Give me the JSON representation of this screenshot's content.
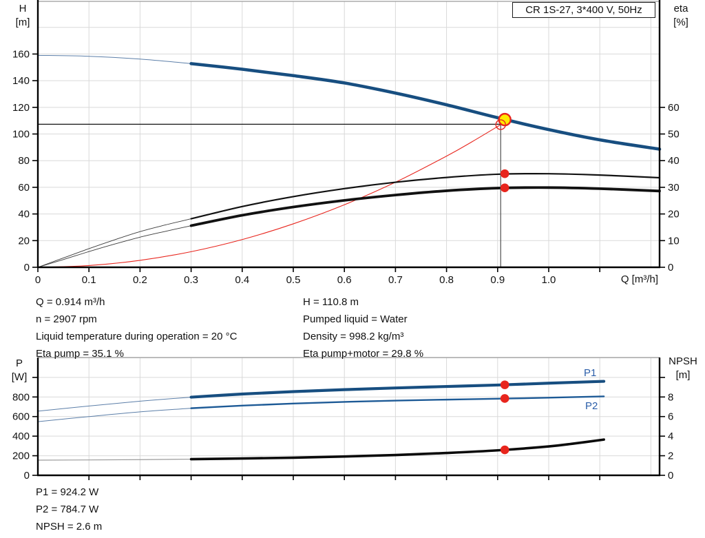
{
  "title_box": {
    "label": "CR 1S-27, 3*400 V, 50Hz"
  },
  "axis_titles": {
    "h": "H\n[m]",
    "eta": "eta\n[%]",
    "q": "Q [m³/h]",
    "p": "P\n[W]",
    "npsh": "NPSH\n[m]"
  },
  "curve_labels": {
    "p1": "P1",
    "p2": "P2"
  },
  "info": {
    "left": [
      "Q = 0.914 m³/h",
      "n = 2907 rpm",
      "Liquid temperature during operation = 20 °C",
      "Eta pump = 35.1 %"
    ],
    "right": [
      "H = 110.8 m",
      "Pumped liquid = Water",
      "Density = 998.2 kg/m³",
      "Eta pump+motor = 29.8 %"
    ],
    "bottom": [
      "P1 = 924.2 W",
      "P2 = 784.7 W",
      "NPSH = 2.6 m"
    ]
  },
  "colors": {
    "curve_blue": "#174e80",
    "p2_blue": "#1d5a96",
    "label_blue": "#2a5da8",
    "red": "#e8251d",
    "yellow": "#ffe800",
    "black": "#0d0d0d",
    "grid": "#d9d9d9",
    "border_gray": "#9a9a9a",
    "text": "#111111"
  },
  "chart_data": [
    {
      "type": "line",
      "name": "qh-eta-chart",
      "title": "CR 1S-27, 3*400 V, 50Hz",
      "xlabel": "Q [m³/h]",
      "ylabel_left": "H [m]",
      "ylabel_right": "eta [%]",
      "x_range": [
        0,
        1.217
      ],
      "y_left_range": [
        0,
        199.5
      ],
      "y_right_range": [
        0,
        99.75
      ],
      "grid": {
        "x_step": 0.1,
        "left_step": 20
      },
      "x_ticks": {
        "values": [
          0,
          0.1,
          0.2,
          0.3,
          0.4,
          0.5,
          0.6,
          0.7,
          0.8,
          0.9,
          1.0,
          1.1
        ],
        "labels": [
          "0",
          "0.1",
          "0.2",
          "0.3",
          "0.4",
          "0.5",
          "0.6",
          "0.7",
          "0.8",
          "0.9",
          "1.0",
          ""
        ]
      },
      "left_ticks": {
        "values": [
          0,
          20,
          40,
          60,
          80,
          100,
          120,
          140,
          160
        ],
        "labels": [
          "0",
          "20",
          "40",
          "60",
          "80",
          "100",
          "120",
          "140",
          "160"
        ]
      },
      "right_ticks": {
        "values": [
          0,
          10,
          20,
          30,
          40,
          50,
          60
        ],
        "labels": [
          "0",
          "10",
          "20",
          "30",
          "40",
          "50",
          "60"
        ]
      },
      "series": [
        {
          "name": "qh-curve",
          "axis": "left",
          "color": "#174e80",
          "thin_color": "#5b7ea8",
          "width": 4.6,
          "thin_width": 1,
          "thick_from": 0.3,
          "points": [
            [
              0,
              159
            ],
            [
              0.1,
              158.3
            ],
            [
              0.2,
              156.2
            ],
            [
              0.3,
              152.8
            ],
            [
              0.4,
              148.6
            ],
            [
              0.5,
              143.8
            ],
            [
              0.6,
              138.3
            ],
            [
              0.7,
              130.7
            ],
            [
              0.8,
              121.9
            ],
            [
              0.9,
              112.2
            ],
            [
              1.0,
              103.3
            ],
            [
              1.1,
              95.6
            ],
            [
              1.217,
              88.6
            ]
          ]
        },
        {
          "name": "system-curve",
          "axis": "left",
          "color": "#e8251d",
          "width": 1.1,
          "points": [
            [
              0,
              0
            ],
            [
              0.1,
              1.3
            ],
            [
              0.2,
              5.2
            ],
            [
              0.3,
              11.7
            ],
            [
              0.4,
              20.8
            ],
            [
              0.5,
              32.6
            ],
            [
              0.6,
              46.9
            ],
            [
              0.7,
              63.8
            ],
            [
              0.8,
              83.4
            ],
            [
              0.85,
              94.2
            ],
            [
              0.906,
              107
            ]
          ]
        },
        {
          "name": "eta-pump-curve",
          "axis": "right",
          "color": "#111111",
          "thin_color": "#3a3a3a",
          "width": 2.2,
          "thin_width": 0.9,
          "thick_from": 0.3,
          "points": [
            [
              0,
              0
            ],
            [
              0.05,
              3.5
            ],
            [
              0.1,
              7
            ],
            [
              0.15,
              10.3
            ],
            [
              0.2,
              13.4
            ],
            [
              0.25,
              15.9
            ],
            [
              0.3,
              18.2
            ],
            [
              0.4,
              22.8
            ],
            [
              0.5,
              26.5
            ],
            [
              0.6,
              29.5
            ],
            [
              0.7,
              31.9
            ],
            [
              0.8,
              33.7
            ],
            [
              0.9,
              34.9
            ],
            [
              1.0,
              35.1
            ],
            [
              1.1,
              34.6
            ],
            [
              1.217,
              33.6
            ]
          ]
        },
        {
          "name": "eta-pump-motor-curve",
          "axis": "right",
          "color": "#111111",
          "thin_color": "#3a3a3a",
          "width": 3.8,
          "thin_width": 0.9,
          "thick_from": 0.3,
          "points": [
            [
              0,
              0
            ],
            [
              0.05,
              2.9
            ],
            [
              0.1,
              5.9
            ],
            [
              0.15,
              8.7
            ],
            [
              0.2,
              11.3
            ],
            [
              0.25,
              13.5
            ],
            [
              0.3,
              15.6
            ],
            [
              0.4,
              19.5
            ],
            [
              0.5,
              22.6
            ],
            [
              0.6,
              25.1
            ],
            [
              0.7,
              27.1
            ],
            [
              0.8,
              28.7
            ],
            [
              0.9,
              29.7
            ],
            [
              1.0,
              29.9
            ],
            [
              1.1,
              29.5
            ],
            [
              1.217,
              28.6
            ]
          ]
        }
      ],
      "duty_lines": {
        "h_value": 107.3,
        "h_from": 0,
        "h_to": 0.906,
        "v_q": 0.906,
        "v_top": 111,
        "v_bottom": 0
      },
      "markers": [
        {
          "name": "duty-point-marker",
          "x": 0.914,
          "y": 110.8,
          "axis": "left",
          "style": "duty"
        },
        {
          "name": "system-intersection-marker",
          "x": 0.906,
          "y": 107,
          "axis": "left",
          "style": "open"
        },
        {
          "name": "eta-pump-marker",
          "x": 0.914,
          "y": 35.1,
          "axis": "right",
          "style": "dot"
        },
        {
          "name": "eta-pump-motor-marker",
          "x": 0.914,
          "y": 29.8,
          "axis": "right",
          "style": "dot"
        }
      ]
    },
    {
      "type": "line",
      "name": "power-npsh-chart",
      "xlabel": "",
      "ylabel_left": "P [W]",
      "ylabel_right": "NPSH [m]",
      "x_range": [
        0,
        1.217
      ],
      "y_left_range": [
        0,
        1203
      ],
      "y_right_range": [
        0,
        12.03
      ],
      "grid": {
        "x_step": 0.1,
        "left_step": 200
      },
      "x_ticks": {
        "values": [
          0.1,
          0.2,
          0.3,
          0.4,
          0.5,
          0.6,
          0.7,
          0.8,
          0.9,
          1.0,
          1.1
        ],
        "labels": [
          "",
          "",
          "",
          "",
          "",
          "",
          "",
          "",
          "",
          "",
          ""
        ]
      },
      "left_ticks": {
        "values": [
          0,
          200,
          400,
          600,
          800,
          1000
        ],
        "labels": [
          "0",
          "200",
          "400",
          "600",
          "800",
          ""
        ]
      },
      "right_ticks": {
        "values": [
          0,
          2,
          4,
          6,
          8,
          10
        ],
        "labels": [
          "0",
          "2",
          "4",
          "6",
          "8",
          ""
        ]
      },
      "series": [
        {
          "name": "p1-curve",
          "axis": "left",
          "color": "#174e80",
          "thin_color": "#5b7ea8",
          "width": 4.2,
          "thin_width": 1,
          "thick_from": 0.3,
          "points": [
            [
              0,
              655
            ],
            [
              0.1,
              708
            ],
            [
              0.2,
              757
            ],
            [
              0.3,
              798
            ],
            [
              0.4,
              830
            ],
            [
              0.5,
              855
            ],
            [
              0.6,
              875
            ],
            [
              0.7,
              892
            ],
            [
              0.8,
              907
            ],
            [
              0.9,
              922
            ],
            [
              1.0,
              941
            ],
            [
              1.108,
              960
            ]
          ]
        },
        {
          "name": "p2-curve",
          "axis": "left",
          "color": "#1d5a96",
          "thin_color": "#5b7ea8",
          "width": 2.4,
          "thin_width": 1,
          "thick_from": 0.3,
          "points": [
            [
              0,
              548
            ],
            [
              0.1,
              600
            ],
            [
              0.2,
              648
            ],
            [
              0.3,
              685
            ],
            [
              0.4,
              712
            ],
            [
              0.5,
              733
            ],
            [
              0.6,
              750
            ],
            [
              0.7,
              763
            ],
            [
              0.8,
              773
            ],
            [
              0.9,
              782
            ],
            [
              1.0,
              793
            ],
            [
              1.108,
              806
            ]
          ]
        },
        {
          "name": "npsh-curve",
          "axis": "right",
          "color": "#0a0a0a",
          "thin_color": "#9a9a9a",
          "width": 3.6,
          "thin_width": 1.2,
          "thick_from": 0.3,
          "points": [
            [
              0,
              1.55
            ],
            [
              0.1,
              1.57
            ],
            [
              0.2,
              1.6
            ],
            [
              0.3,
              1.65
            ],
            [
              0.4,
              1.72
            ],
            [
              0.5,
              1.8
            ],
            [
              0.6,
              1.92
            ],
            [
              0.7,
              2.07
            ],
            [
              0.8,
              2.28
            ],
            [
              0.9,
              2.55
            ],
            [
              1.0,
              2.95
            ],
            [
              1.05,
              3.25
            ],
            [
              1.108,
              3.65
            ]
          ]
        }
      ],
      "markers": [
        {
          "name": "p1-marker",
          "x": 0.914,
          "y": 924.2,
          "axis": "left",
          "style": "dot"
        },
        {
          "name": "p2-marker",
          "x": 0.914,
          "y": 784.7,
          "axis": "left",
          "style": "dot"
        },
        {
          "name": "npsh-marker",
          "x": 0.914,
          "y": 2.6,
          "axis": "right",
          "style": "dot"
        }
      ]
    }
  ]
}
